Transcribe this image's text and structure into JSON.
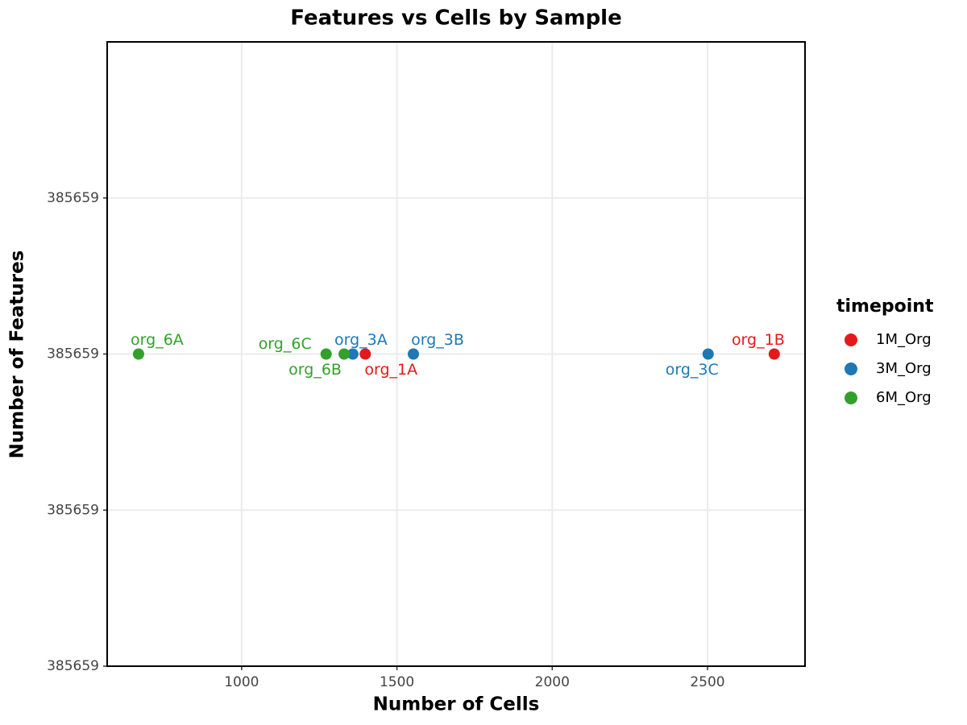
{
  "chart_data": {
    "type": "scatter",
    "title": "Features vs Cells by Sample",
    "x_label": "Number of Cells",
    "y_label": "Number of Features",
    "legend_title": "timepoint",
    "legend_position": "right",
    "grid": true,
    "xlim": [
      567,
      2814
    ],
    "xticks": [
      1000,
      1500,
      2000,
      2500
    ],
    "ylim": [
      385658.95,
      385659.05
    ],
    "yticks": [
      {
        "value": 385658.95,
        "label": "385659"
      },
      {
        "value": 385658.975,
        "label": "385659"
      },
      385659,
      {
        "value": 385659.025,
        "label": "385659"
      }
    ],
    "series": [
      {
        "name": "1M_Org",
        "color": "#e31a1c",
        "x": [
          1398,
          2715
        ],
        "values": [
          385659,
          385659
        ],
        "labels": [
          "org_1A",
          "org_1B"
        ]
      },
      {
        "name": "3M_Org",
        "color": "#1f78b4",
        "x": [
          1358,
          1553,
          2502
        ],
        "values": [
          385659,
          385659,
          385659
        ],
        "labels": [
          "org_3A",
          "org_3B",
          "org_3C"
        ]
      },
      {
        "name": "6M_Org",
        "color": "#33a02c",
        "x": [
          668,
          1330,
          1272
        ],
        "values": [
          385659,
          385659,
          385659
        ],
        "labels": [
          "org_6A",
          "org_6B",
          "org_6C"
        ]
      }
    ]
  }
}
